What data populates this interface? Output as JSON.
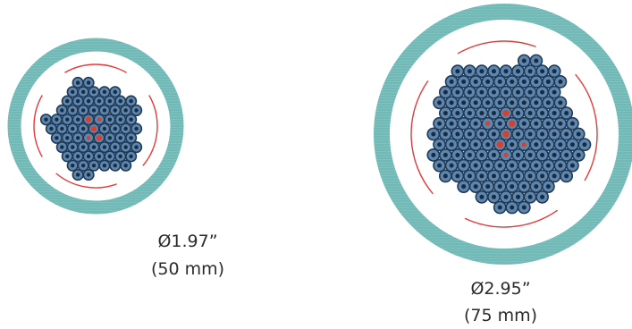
{
  "colors": {
    "jacket": "#6fb8b5",
    "jacket_texture": "#8fcfcc",
    "fiber_outer": "#1f3a57",
    "fiber_fill": "#5f86ad",
    "fiber_core": "#162c44",
    "center_fiber": "#d6402c",
    "ripcord": "#e23b3b"
  },
  "cables": [
    {
      "id": "small",
      "diameter_label": "Ø1.97”",
      "metric_label": "(50 mm)"
    },
    {
      "id": "large",
      "diameter_label": "Ø2.95”",
      "metric_label": "(75 mm)"
    }
  ]
}
